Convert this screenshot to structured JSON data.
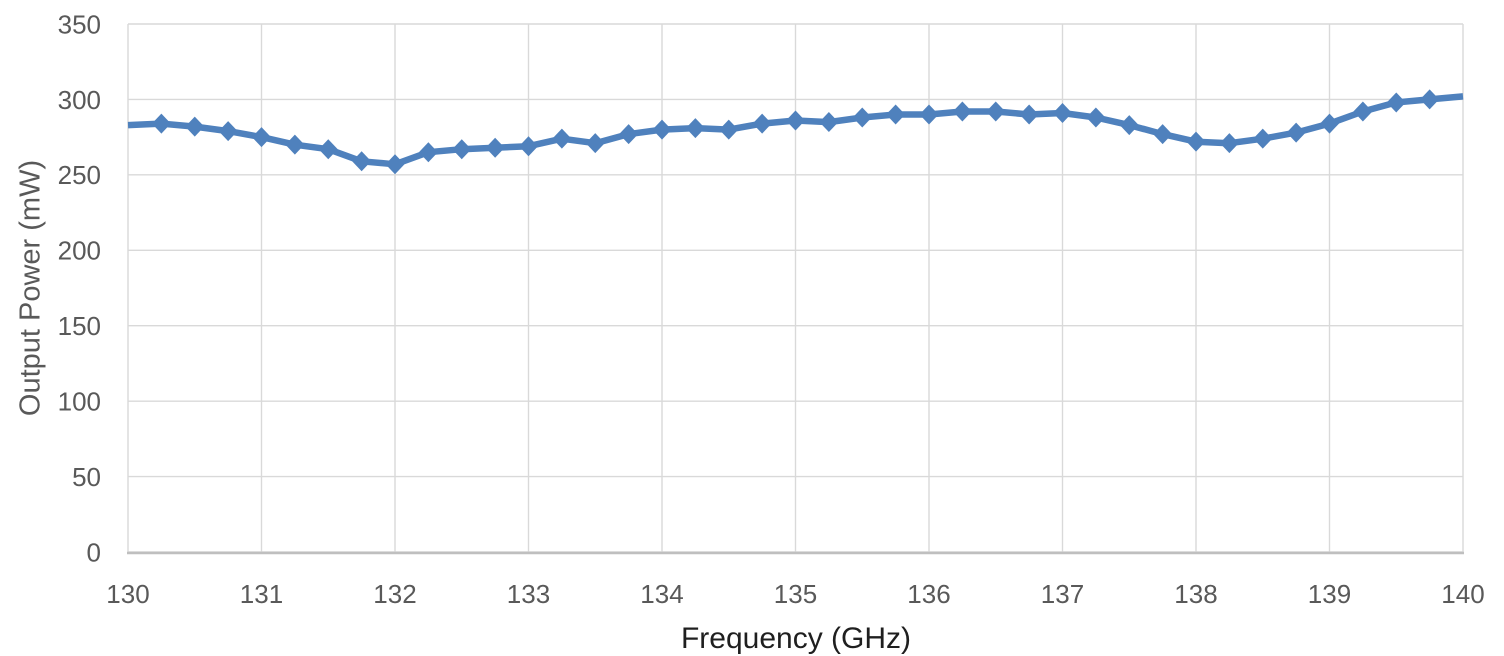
{
  "chart_data": {
    "type": "line",
    "title": "",
    "xlabel": "Frequency (GHz)",
    "ylabel": "Output Power (mW)",
    "x": [
      130,
      130.25,
      130.5,
      130.75,
      131,
      131.25,
      131.5,
      131.75,
      132,
      132.25,
      132.5,
      132.75,
      133,
      133.25,
      133.5,
      133.75,
      134,
      134.25,
      134.5,
      134.75,
      135,
      135.25,
      135.5,
      135.75,
      136,
      136.25,
      136.5,
      136.75,
      137,
      137.25,
      137.5,
      137.75,
      138,
      138.25,
      138.5,
      138.75,
      139,
      139.25,
      139.5,
      139.75,
      140
    ],
    "series": [
      {
        "name": "Output Power",
        "values": [
          283,
          284,
          282,
          279,
          275,
          270,
          267,
          259,
          257,
          265,
          267,
          268,
          269,
          274,
          271,
          277,
          280,
          281,
          280,
          284,
          286,
          285,
          288,
          290,
          290,
          292,
          292,
          290,
          291,
          288,
          283,
          277,
          272,
          271,
          274,
          278,
          284,
          292,
          298,
          300,
          302
        ]
      }
    ],
    "xlim": [
      130,
      140
    ],
    "ylim": [
      0,
      350
    ],
    "x_ticks": [
      130,
      131,
      132,
      133,
      134,
      135,
      136,
      137,
      138,
      139,
      140
    ],
    "x_tick_labels": [
      "130",
      "131",
      "132",
      "133",
      "134",
      "135",
      "136",
      "137",
      "138",
      "139",
      "140"
    ],
    "y_ticks": [
      0,
      50,
      100,
      150,
      200,
      250,
      300,
      350
    ],
    "y_tick_labels": [
      "0",
      "50",
      "100",
      "150",
      "200",
      "250",
      "300",
      "350"
    ],
    "grid": true,
    "legend": "none",
    "marker": "diamond",
    "colors": {
      "series": "#4F81BD",
      "gridline": "#D9D9D9",
      "axis_line": "#BFBFBF",
      "tick_label": "#595959",
      "y_title": "#595959",
      "x_title": "#1F1F1F",
      "background": "#FFFFFF"
    }
  }
}
